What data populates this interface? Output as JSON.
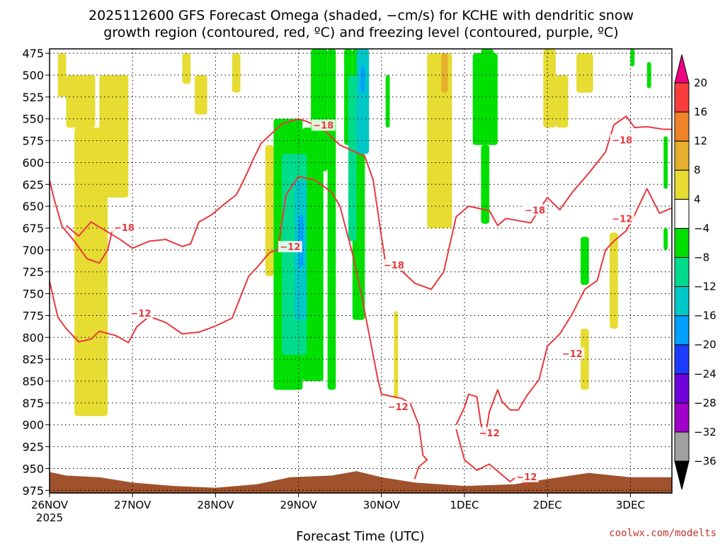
{
  "chart_data": {
    "type": "heatmap",
    "title_lines": [
      "2025112600 GFS Forecast Omega (shaded, −cm/s) for KCHE with dendritic snow",
      "growth region (contoured, red, ºC) and freezing level (contoured, purple, ºC)"
    ],
    "xlabel": "Forecast Time (UTC)",
    "credit": "coolwx.com/modelts",
    "x_ticks": [
      {
        "day": 0,
        "label": "26NOV",
        "sub": "2025"
      },
      {
        "day": 1,
        "label": "27NOV",
        "sub": ""
      },
      {
        "day": 2,
        "label": "28NOV",
        "sub": ""
      },
      {
        "day": 3,
        "label": "29NOV",
        "sub": ""
      },
      {
        "day": 4,
        "label": "30NOV",
        "sub": ""
      },
      {
        "day": 5,
        "label": "1DEC",
        "sub": ""
      },
      {
        "day": 6,
        "label": "2DEC",
        "sub": ""
      },
      {
        "day": 7,
        "label": "3DEC",
        "sub": ""
      }
    ],
    "xlim": [
      0,
      7.5
    ],
    "y_ticks": [
      475,
      500,
      525,
      550,
      575,
      600,
      625,
      650,
      675,
      700,
      725,
      750,
      775,
      800,
      825,
      850,
      875,
      900,
      925,
      950,
      975
    ],
    "ylim": [
      475,
      975
    ],
    "y_axis": "pressure (hPa), reversed",
    "grid": true,
    "colorbar": {
      "levels": [
        -36,
        -32,
        -28,
        -24,
        -20,
        -16,
        -12,
        -8,
        -4,
        4,
        8,
        12,
        16,
        20
      ],
      "colors": [
        "#a0a0a0",
        "#a000c8",
        "#6e00dc",
        "#1e3cff",
        "#00a0ff",
        "#00c8c8",
        "#00dc8c",
        "#00e000",
        "#ffffff",
        "#e6dc32",
        "#e6af2d",
        "#f08228",
        "#fa3c3c",
        "#f00082"
      ],
      "under_color": "#000000",
      "over_color": "#f00082"
    },
    "omega_regions": [
      {
        "color": "#e6dc32",
        "t0": 0.1,
        "t1": 0.2,
        "p0": 475,
        "p1": 525
      },
      {
        "color": "#e6dc32",
        "t0": 0.2,
        "t1": 0.55,
        "p0": 500,
        "p1": 560
      },
      {
        "color": "#e6dc32",
        "t0": 0.3,
        "t1": 0.7,
        "p0": 560,
        "p1": 890
      },
      {
        "color": "#e6dc32",
        "t0": 0.6,
        "t1": 0.95,
        "p0": 500,
        "p1": 640
      },
      {
        "color": "#e6dc32",
        "t0": 1.6,
        "t1": 1.7,
        "p0": 475,
        "p1": 510
      },
      {
        "color": "#e6dc32",
        "t0": 1.75,
        "t1": 1.9,
        "p0": 500,
        "p1": 545
      },
      {
        "color": "#e6dc32",
        "t0": 2.2,
        "t1": 2.3,
        "p0": 475,
        "p1": 520
      },
      {
        "color": "#e6dc32",
        "t0": 2.6,
        "t1": 2.7,
        "p0": 580,
        "p1": 730
      },
      {
        "color": "#e6dc32",
        "t0": 4.15,
        "t1": 4.2,
        "p0": 770,
        "p1": 870
      },
      {
        "color": "#e6dc32",
        "t0": 4.55,
        "t1": 4.85,
        "p0": 475,
        "p1": 675
      },
      {
        "color": "#e6af2d",
        "t0": 4.72,
        "t1": 4.8,
        "p0": 475,
        "p1": 520
      },
      {
        "color": "#e6dc32",
        "t0": 5.95,
        "t1": 6.1,
        "p0": 470,
        "p1": 560
      },
      {
        "color": "#e6dc32",
        "t0": 6.1,
        "t1": 6.25,
        "p0": 500,
        "p1": 560
      },
      {
        "color": "#e6dc32",
        "t0": 6.35,
        "t1": 6.55,
        "p0": 475,
        "p1": 520
      },
      {
        "color": "#e6dc32",
        "t0": 6.4,
        "t1": 6.5,
        "p0": 790,
        "p1": 860
      },
      {
        "color": "#e6dc32",
        "t0": 6.75,
        "t1": 6.85,
        "p0": 680,
        "p1": 790
      },
      {
        "color": "#00e000",
        "t0": 3.15,
        "t1": 3.35,
        "p0": 470,
        "p1": 610
      },
      {
        "color": "#00e000",
        "t0": 3.35,
        "t1": 3.45,
        "p0": 470,
        "p1": 860
      },
      {
        "color": "#00e000",
        "t0": 3.55,
        "t1": 3.65,
        "p0": 470,
        "p1": 580
      },
      {
        "color": "#00e000",
        "t0": 3.65,
        "t1": 3.8,
        "p0": 470,
        "p1": 780
      },
      {
        "color": "#00e000",
        "t0": 4.05,
        "t1": 4.1,
        "p0": 500,
        "p1": 560
      },
      {
        "color": "#00e000",
        "t0": 5.1,
        "t1": 5.4,
        "p0": 475,
        "p1": 580
      },
      {
        "color": "#00e000",
        "t0": 5.2,
        "t1": 5.3,
        "p0": 580,
        "p1": 670
      },
      {
        "color": "#00e000",
        "t0": 5.2,
        "t1": 5.35,
        "p0": 470,
        "p1": 520
      },
      {
        "color": "#00e000",
        "t0": 6.4,
        "t1": 6.5,
        "p0": 685,
        "p1": 740
      },
      {
        "color": "#00e000",
        "t0": 7.0,
        "t1": 7.05,
        "p0": 470,
        "p1": 490
      },
      {
        "color": "#00e000",
        "t0": 7.2,
        "t1": 7.25,
        "p0": 485,
        "p1": 515
      },
      {
        "color": "#00e000",
        "t0": 7.4,
        "t1": 7.45,
        "p0": 570,
        "p1": 630
      },
      {
        "color": "#00e000",
        "t0": 7.4,
        "t1": 7.45,
        "p0": 675,
        "p1": 700
      },
      {
        "color": "#00e000",
        "t0": 2.7,
        "t1": 3.05,
        "p0": 550,
        "p1": 860
      },
      {
        "color": "#00e000",
        "t0": 3.05,
        "t1": 3.3,
        "p0": 560,
        "p1": 850
      },
      {
        "color": "#00dc8c",
        "t0": 2.8,
        "t1": 3.1,
        "p0": 590,
        "p1": 820
      },
      {
        "color": "#00c8c8",
        "t0": 2.95,
        "t1": 3.1,
        "p0": 620,
        "p1": 780
      },
      {
        "color": "#00c8c8",
        "t0": 3.7,
        "t1": 3.85,
        "p0": 470,
        "p1": 590
      },
      {
        "color": "#00dc8c",
        "t0": 3.6,
        "t1": 3.7,
        "p0": 500,
        "p1": 690
      },
      {
        "color": "#00a0ff",
        "t0": 3.0,
        "t1": 3.06,
        "p0": 660,
        "p1": 720
      },
      {
        "color": "#00a0ff",
        "t0": 3.75,
        "t1": 3.8,
        "p0": 490,
        "p1": 520
      }
    ],
    "dgz_contours": [
      {
        "level": -18,
        "points": [
          [
            0.2,
            672
          ],
          [
            0.35,
            684
          ],
          [
            0.5,
            668
          ],
          [
            0.85,
            688
          ],
          [
            1.0,
            698
          ],
          [
            1.2,
            690
          ],
          [
            1.4,
            688
          ],
          [
            1.6,
            696
          ],
          [
            1.7,
            693
          ],
          [
            1.8,
            668
          ],
          [
            1.95,
            660
          ],
          [
            2.1,
            648
          ],
          [
            2.25,
            637
          ],
          [
            2.3,
            628
          ],
          [
            2.4,
            608
          ],
          [
            2.45,
            597
          ],
          [
            2.55,
            578
          ],
          [
            2.8,
            556
          ],
          [
            3.0,
            550
          ],
          [
            3.1,
            553
          ],
          [
            3.3,
            562
          ],
          [
            3.5,
            580
          ],
          [
            3.8,
            593
          ],
          [
            3.9,
            620
          ],
          [
            4.0,
            685
          ],
          [
            4.05,
            716
          ],
          [
            4.2,
            720
          ],
          [
            4.4,
            738
          ],
          [
            4.6,
            745
          ],
          [
            4.75,
            725
          ],
          [
            4.9,
            662
          ],
          [
            5.05,
            650
          ],
          [
            5.3,
            655
          ],
          [
            5.4,
            672
          ],
          [
            5.5,
            664
          ],
          [
            5.8,
            669
          ],
          [
            5.95,
            647
          ],
          [
            6.0,
            640
          ],
          [
            6.15,
            654
          ],
          [
            6.3,
            634
          ],
          [
            6.5,
            612
          ],
          [
            6.7,
            588
          ],
          [
            6.8,
            557
          ],
          [
            6.95,
            547
          ],
          [
            7.05,
            560
          ],
          [
            7.2,
            559
          ],
          [
            7.4,
            562
          ],
          [
            7.5,
            562
          ]
        ]
      },
      {
        "level": -18,
        "points": [
          [
            0.0,
            620
          ],
          [
            0.05,
            640
          ],
          [
            0.15,
            673
          ],
          [
            0.3,
            690
          ],
          [
            0.45,
            710
          ],
          [
            0.6,
            715
          ],
          [
            0.7,
            700
          ],
          [
            0.75,
            680
          ],
          [
            0.85,
            672
          ]
        ]
      },
      {
        "level": -12,
        "points": [
          [
            0.0,
            736
          ],
          [
            0.1,
            777
          ],
          [
            0.2,
            790
          ],
          [
            0.35,
            805
          ],
          [
            0.5,
            802
          ],
          [
            0.6,
            793
          ],
          [
            0.8,
            798
          ],
          [
            0.95,
            806
          ],
          [
            1.05,
            788
          ],
          [
            1.2,
            776
          ],
          [
            1.4,
            783
          ],
          [
            1.6,
            796
          ],
          [
            1.8,
            794
          ],
          [
            2.0,
            787
          ],
          [
            2.2,
            778
          ],
          [
            2.4,
            730
          ],
          [
            2.5,
            720
          ],
          [
            2.65,
            703
          ],
          [
            2.75,
            700
          ],
          [
            2.85,
            637
          ],
          [
            3.0,
            616
          ],
          [
            3.2,
            620
          ],
          [
            3.4,
            634
          ],
          [
            3.5,
            650
          ],
          [
            3.65,
            704
          ],
          [
            3.75,
            747
          ],
          [
            3.95,
            845
          ],
          [
            4.0,
            865
          ],
          [
            4.25,
            870
          ],
          [
            4.35,
            876
          ],
          [
            4.45,
            900
          ],
          [
            4.5,
            935
          ],
          [
            4.55,
            940
          ],
          [
            4.45,
            948
          ],
          [
            4.4,
            962
          ]
        ]
      },
      {
        "level": -12,
        "points": [
          [
            4.9,
            900
          ],
          [
            5.0,
            880
          ],
          [
            5.05,
            865
          ],
          [
            5.15,
            868
          ],
          [
            5.2,
            900
          ],
          [
            5.25,
            915
          ],
          [
            5.3,
            885
          ],
          [
            5.4,
            860
          ],
          [
            5.45,
            873
          ],
          [
            5.55,
            883
          ],
          [
            5.65,
            883
          ],
          [
            5.75,
            867
          ],
          [
            5.9,
            848
          ],
          [
            6.0,
            810
          ],
          [
            6.15,
            796
          ],
          [
            6.3,
            773
          ],
          [
            6.45,
            745
          ],
          [
            6.6,
            735
          ],
          [
            6.7,
            700
          ],
          [
            6.8,
            690
          ],
          [
            6.95,
            678
          ],
          [
            7.05,
            660
          ],
          [
            7.2,
            630
          ],
          [
            7.35,
            658
          ],
          [
            7.5,
            652
          ]
        ]
      },
      {
        "level": -12,
        "points": [
          [
            4.9,
            905
          ],
          [
            5.0,
            940
          ],
          [
            5.15,
            952
          ],
          [
            5.3,
            945
          ],
          [
            5.45,
            957
          ],
          [
            5.55,
            965
          ],
          [
            5.65,
            958
          ],
          [
            5.75,
            970
          ]
        ]
      }
    ],
    "dgz_labels": [
      {
        "text": "−18",
        "t": 0.9,
        "p": 675
      },
      {
        "text": "−18",
        "t": 3.3,
        "p": 558
      },
      {
        "text": "−18",
        "t": 4.15,
        "p": 718
      },
      {
        "text": "−18",
        "t": 5.85,
        "p": 655
      },
      {
        "text": "−18",
        "t": 6.9,
        "p": 575
      },
      {
        "text": "−12",
        "t": 1.1,
        "p": 773
      },
      {
        "text": "−12",
        "t": 2.9,
        "p": 697
      },
      {
        "text": "−12",
        "t": 4.2,
        "p": 880
      },
      {
        "text": "−12",
        "t": 5.3,
        "p": 910
      },
      {
        "text": "−12",
        "t": 5.75,
        "p": 960
      },
      {
        "text": "−12",
        "t": 6.3,
        "p": 819
      },
      {
        "text": "−12",
        "t": 6.9,
        "p": 665
      }
    ],
    "surface": {
      "color": "#a0522d",
      "points": [
        [
          0.0,
          954
        ],
        [
          0.2,
          958
        ],
        [
          0.6,
          960
        ],
        [
          1.0,
          966
        ],
        [
          1.5,
          970
        ],
        [
          2.0,
          972
        ],
        [
          2.5,
          968
        ],
        [
          2.9,
          960
        ],
        [
          3.4,
          958
        ],
        [
          3.7,
          953
        ],
        [
          4.0,
          960
        ],
        [
          4.4,
          966
        ],
        [
          5.0,
          970
        ],
        [
          5.6,
          968
        ],
        [
          6.0,
          962
        ],
        [
          6.5,
          955
        ],
        [
          7.0,
          960
        ],
        [
          7.5,
          960
        ]
      ]
    }
  }
}
